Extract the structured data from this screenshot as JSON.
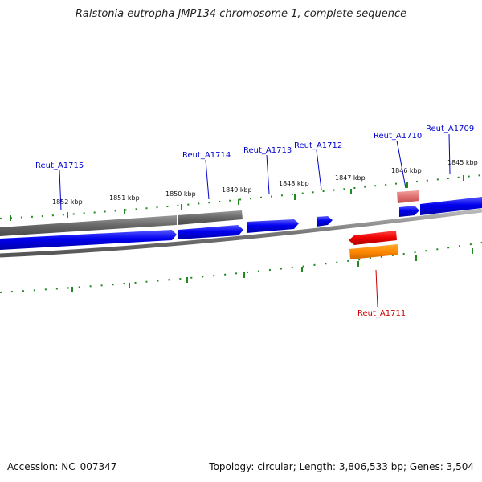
{
  "title": "Ralstonia eutropha JMP134 chromosome 1, complete sequence",
  "footer": {
    "accession_label": "Accession:",
    "accession": "NC_007347",
    "topology_label": "Topology:",
    "topology": "circular",
    "length_label": "Length:",
    "length": "3,806,533 bp",
    "genes_label": "Genes:",
    "genes": "3,504"
  },
  "colors": {
    "forward_gene": "#0000ee",
    "reverse_gene": "#ee0000",
    "orange_gene": "#ff8c00",
    "pink_gene": "#e07070",
    "gray_feature": "#666666",
    "backbone": "#888888",
    "tick": "#228822",
    "label_forward": "#0000cc",
    "label_reverse": "#cc0000"
  },
  "scale_labels": [
    "1852 kbp",
    "1851 kbp",
    "1850 kbp",
    "1849 kbp",
    "1848 kbp",
    "1847 kbp",
    "1846 kbp",
    "1845 kbp"
  ],
  "gene_labels": [
    {
      "text": "Reut_A1715",
      "strand": "forward"
    },
    {
      "text": "Reut_A1714",
      "strand": "forward"
    },
    {
      "text": "Reut_A1713",
      "strand": "forward"
    },
    {
      "text": "Reut_A1712",
      "strand": "forward"
    },
    {
      "text": "Reut_A1710",
      "strand": "forward"
    },
    {
      "text": "Reut_A1709",
      "strand": "forward"
    },
    {
      "text": "Reut_A1711",
      "strand": "reverse"
    }
  ]
}
